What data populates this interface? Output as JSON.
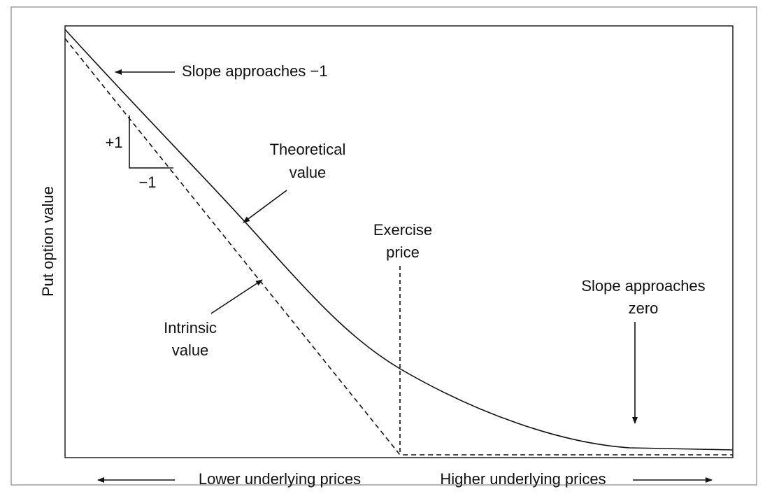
{
  "diagram": {
    "y_axis_label": "Put option value",
    "annotations": {
      "slope_minus_one": "Slope approaches −1",
      "rise": "+1",
      "run": "−1",
      "theoretical": [
        "Theoretical",
        "value"
      ],
      "exercise": [
        "Exercise",
        "price"
      ],
      "slope_zero": [
        "Slope approaches",
        "zero"
      ],
      "intrinsic": [
        "Intrinsic",
        "value"
      ]
    },
    "x_axis_labels": {
      "lower": "Lower underlying prices",
      "higher": "Higher underlying prices"
    }
  }
}
